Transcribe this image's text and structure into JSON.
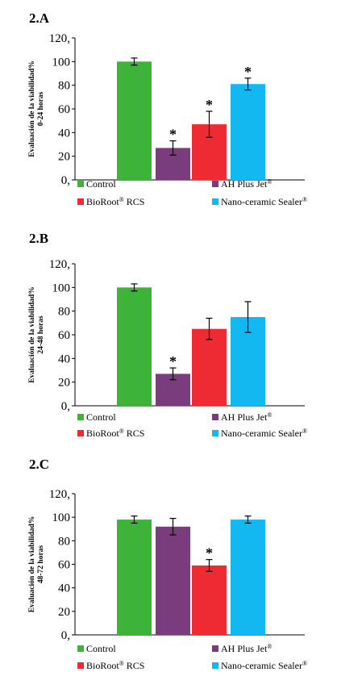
{
  "chart_data": [
    {
      "type": "bar",
      "panel_label": "2.A",
      "ylabel": [
        "Evaluación de la viabilidad%",
        "0-24 horas"
      ],
      "categories": [
        "Control",
        "AH Plus Jet®",
        "BioRoot® RCS",
        "Nano-ceramic Sealer®"
      ],
      "values": [
        100,
        27,
        47,
        81
      ],
      "errors": [
        3,
        6,
        11,
        5
      ],
      "significant": [
        false,
        true,
        true,
        true
      ],
      "ylim": [
        0,
        120
      ],
      "yticks": [
        "0,",
        "20",
        "40",
        "60",
        "80",
        "100",
        "120,"
      ]
    },
    {
      "type": "bar",
      "panel_label": "2.B",
      "ylabel": [
        "Evaluación de la viabilidad%",
        "24-48 horas"
      ],
      "categories": [
        "Control",
        "AH Plus Jet®",
        "BioRoot® RCS",
        "Nano-ceramic Sealer®"
      ],
      "values": [
        100,
        27,
        65,
        75
      ],
      "errors": [
        3,
        5,
        9,
        13
      ],
      "significant": [
        false,
        true,
        false,
        false
      ],
      "ylim": [
        0,
        120
      ],
      "yticks": [
        "0,",
        "20",
        "40",
        "60",
        "80",
        "100",
        "120,"
      ]
    },
    {
      "type": "bar",
      "panel_label": "2.C",
      "ylabel": [
        "Evaluación de la viabilidad%",
        "48-72 horas"
      ],
      "categories": [
        "Control",
        "AH Plus Jet®",
        "BioRoot® RCS",
        "Nano-ceramic Sealer®"
      ],
      "values": [
        98,
        92,
        59,
        98
      ],
      "errors": [
        3,
        7,
        5,
        3
      ],
      "significant": [
        false,
        false,
        true,
        false
      ],
      "ylim": [
        0,
        120
      ],
      "yticks": [
        "0,",
        "20",
        "40",
        "60",
        "80",
        "100",
        "120,"
      ]
    }
  ],
  "legend": {
    "entries": [
      {
        "label": "Control",
        "reg": ""
      },
      {
        "label": "AH Plus Jet",
        "reg": "®"
      },
      {
        "label": "BioRoot",
        "reg": "®",
        "suffix": " RCS"
      },
      {
        "label": "Nano-ceramic Sealer",
        "reg": "®"
      }
    ]
  },
  "colors": [
    "#3db33a",
    "#7b3c7e",
    "#ee2a33",
    "#14b8f0"
  ],
  "significance_marker": "*"
}
